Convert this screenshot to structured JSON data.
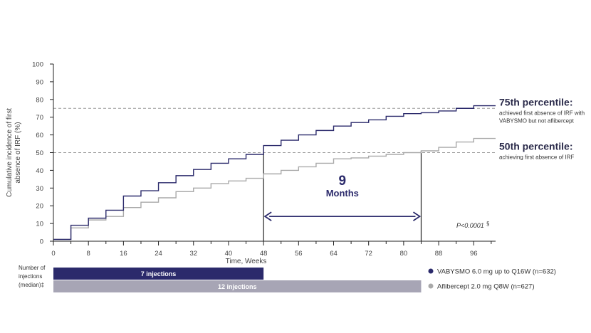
{
  "chart_data": {
    "type": "line",
    "step": true,
    "xlabel": "Time, Weeks",
    "ylabel_lines": [
      "Cumulative incidence of first",
      "absence of IRF (%)"
    ],
    "xlim": [
      0,
      101
    ],
    "ylim": [
      0,
      100
    ],
    "xticks": [
      0,
      8,
      16,
      24,
      32,
      40,
      48,
      56,
      64,
      72,
      80,
      88,
      96
    ],
    "xticks_minor": [
      4,
      12,
      20,
      28,
      36,
      44,
      52,
      60,
      68,
      76,
      84,
      92,
      100
    ],
    "yticks": [
      0,
      10,
      20,
      30,
      40,
      50,
      60,
      70,
      80,
      90,
      100
    ],
    "grid": false,
    "reference_lines": [
      {
        "y": 75,
        "title": "75th percentile:",
        "lines": [
          "achieved first absence of IRF with",
          "VABYSMO but not aflibercept"
        ]
      },
      {
        "y": 50,
        "title": "50th percentile:",
        "lines": [
          "achieving first absence of IRF"
        ]
      }
    ],
    "series": [
      {
        "name": "VABYSMO 6.0 mg up to Q16W (n=632)",
        "color": "#2b2a6b",
        "x": [
          0,
          4,
          8,
          12,
          16,
          20,
          24,
          28,
          32,
          36,
          40,
          44,
          48,
          52,
          56,
          60,
          64,
          68,
          72,
          76,
          80,
          84,
          88,
          92,
          96,
          101
        ],
        "y": [
          1,
          9,
          13,
          17.5,
          25.5,
          28.5,
          33,
          37,
          40.5,
          44,
          46.5,
          49,
          54,
          57,
          60,
          62.5,
          65,
          67,
          68.5,
          70.5,
          72,
          72.5,
          73.5,
          75,
          76.5,
          76.5
        ]
      },
      {
        "name": "Aflibercept 2.0 mg Q8W (n=627)",
        "color": "#a9a9a9",
        "x": [
          0,
          4,
          8,
          12,
          16,
          20,
          24,
          28,
          32,
          36,
          40,
          44,
          48,
          52,
          56,
          60,
          64,
          68,
          72,
          76,
          80,
          84,
          88,
          92,
          96,
          101
        ],
        "y": [
          1,
          7.5,
          12,
          14,
          19,
          22,
          24.5,
          28,
          30,
          32.5,
          34,
          35.5,
          38,
          40,
          42,
          44,
          46.5,
          47,
          48,
          49,
          50,
          51,
          53,
          56,
          58,
          58
        ]
      }
    ],
    "annotation": {
      "number": "9",
      "word": "Months",
      "from_x": 48,
      "to_x": 84,
      "y": 14
    },
    "pvalue": {
      "text": "P<0.0001",
      "mark": "§"
    }
  },
  "injections": {
    "label_lines": [
      "Number of",
      "injections",
      "(median)‡"
    ],
    "bars": [
      {
        "text": "7 injections",
        "end_week": 48,
        "color": "#2b2a6b"
      },
      {
        "text": "12 injections",
        "end_week": 84,
        "color": "#a7a5b5"
      }
    ]
  },
  "legend": [
    {
      "text": "VABYSMO 6.0 mg up to Q16W (n=632)",
      "color": "#2b2a6b"
    },
    {
      "text": "Aflibercept 2.0 mg Q8W (n=627)",
      "color": "#a9a9a9"
    }
  ]
}
